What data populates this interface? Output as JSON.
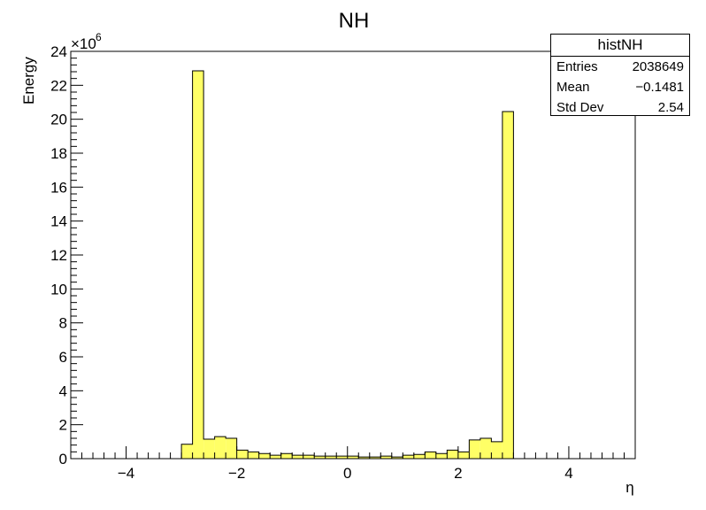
{
  "chart_data": {
    "type": "bar",
    "title": "NH",
    "xlabel": "η",
    "ylabel": "Energy",
    "y_exponent_label": "×10",
    "y_exponent_power": "6",
    "xlim": [
      -5,
      5.2
    ],
    "ylim": [
      0,
      24
    ],
    "x_ticks": [
      -4,
      -2,
      0,
      2,
      4
    ],
    "x_tick_labels": [
      "−4",
      "−2",
      "0",
      "2",
      "4"
    ],
    "y_ticks": [
      0,
      2,
      4,
      6,
      8,
      10,
      12,
      14,
      16,
      18,
      20,
      22,
      24
    ],
    "y_tick_labels": [
      "0",
      "2",
      "4",
      "6",
      "8",
      "10",
      "12",
      "14",
      "16",
      "18",
      "20",
      "22",
      "24"
    ],
    "bar_color": "#ffff66",
    "bin_width": 0.2,
    "bins_x_low": [
      -3.0,
      -2.8,
      -2.6,
      -2.4,
      -2.2,
      -2.0,
      -1.8,
      -1.6,
      -1.4,
      -1.2,
      -1.0,
      -0.8,
      -0.6,
      -0.4,
      -0.2,
      0.0,
      0.2,
      0.4,
      0.6,
      0.8,
      1.0,
      1.2,
      1.4,
      1.6,
      1.8,
      2.0,
      2.2,
      2.4,
      2.6,
      2.8
    ],
    "values": [
      0.85,
      22.85,
      1.15,
      1.3,
      1.2,
      0.5,
      0.4,
      0.3,
      0.2,
      0.3,
      0.2,
      0.2,
      0.15,
      0.15,
      0.15,
      0.15,
      0.1,
      0.1,
      0.15,
      0.1,
      0.2,
      0.25,
      0.4,
      0.3,
      0.5,
      0.4,
      1.1,
      1.2,
      1.0,
      20.45
    ],
    "grid": false,
    "legend": "none"
  },
  "stats_box": {
    "title": "histNH",
    "rows": [
      {
        "label": "Entries",
        "value": "2038649"
      },
      {
        "label": "Mean",
        "value": "−0.1481"
      },
      {
        "label": "Std Dev",
        "value": "2.54"
      }
    ]
  }
}
